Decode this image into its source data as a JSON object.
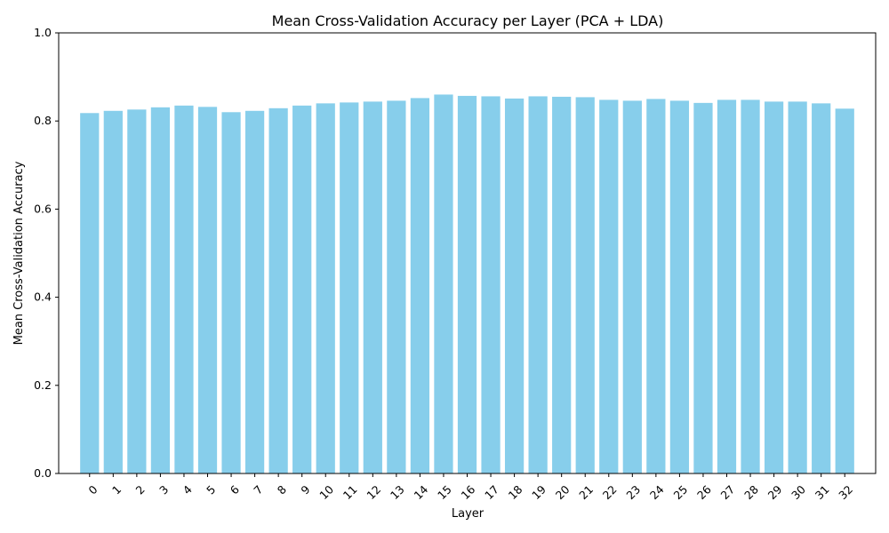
{
  "chart_data": {
    "type": "bar",
    "title": "Mean Cross-Validation Accuracy per Layer (PCA + LDA)",
    "xlabel": "Layer",
    "ylabel": "Mean Cross-Validation Accuracy",
    "ylim": [
      0,
      1.0
    ],
    "yticks": [
      "0.0",
      "0.2",
      "0.4",
      "0.6",
      "0.8",
      "1.0"
    ],
    "categories": [
      "0",
      "1",
      "2",
      "3",
      "4",
      "5",
      "6",
      "7",
      "8",
      "9",
      "10",
      "11",
      "12",
      "13",
      "14",
      "15",
      "16",
      "17",
      "18",
      "19",
      "20",
      "21",
      "22",
      "23",
      "24",
      "25",
      "26",
      "27",
      "28",
      "29",
      "30",
      "31",
      "32"
    ],
    "values": [
      0.818,
      0.823,
      0.826,
      0.831,
      0.835,
      0.832,
      0.82,
      0.823,
      0.829,
      0.835,
      0.84,
      0.842,
      0.844,
      0.846,
      0.852,
      0.86,
      0.857,
      0.856,
      0.851,
      0.856,
      0.855,
      0.854,
      0.848,
      0.846,
      0.85,
      0.846,
      0.841,
      0.848,
      0.848,
      0.844,
      0.844,
      0.84,
      0.828
    ],
    "bar_color": "#87CEEB",
    "grid": false,
    "legend": "none"
  }
}
